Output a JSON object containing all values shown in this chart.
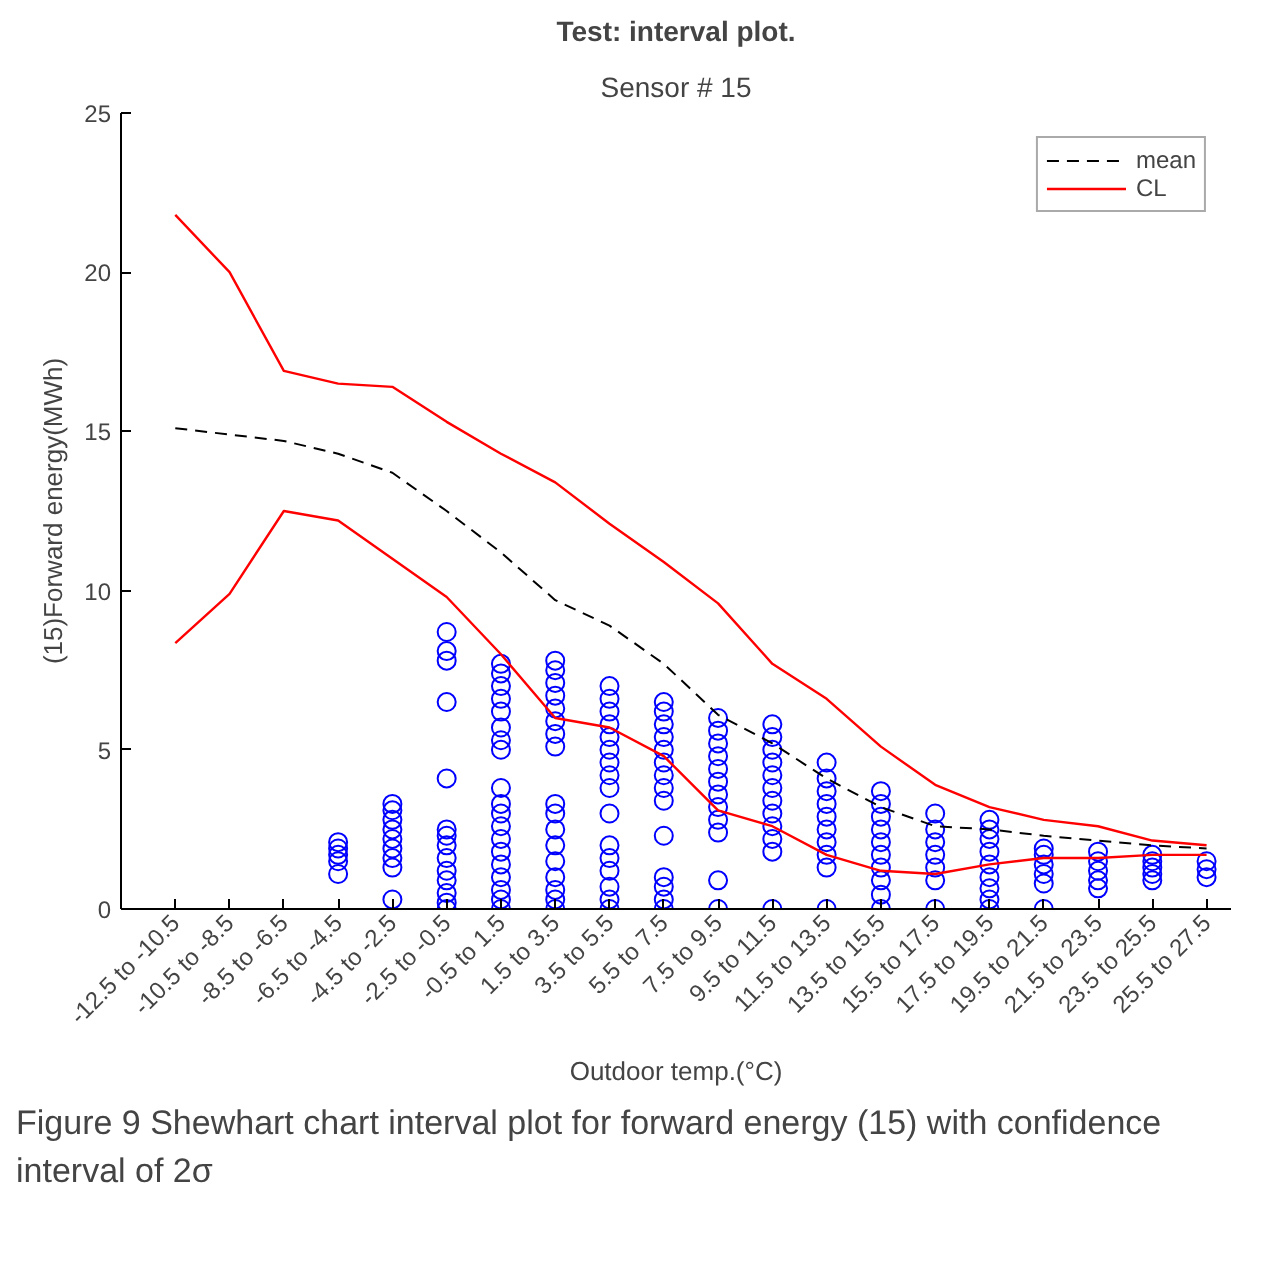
{
  "chart_data": {
    "type": "line",
    "title": "Test: interval plot.",
    "subtitle": "Sensor # 15",
    "xlabel": "Outdoor temp.(°C)",
    "ylabel": "(15)Forward energy(MWh)",
    "categories": [
      "-12.5 to -10.5",
      "-10.5 to -8.5",
      "-8.5 to -6.5",
      "-6.5 to -4.5",
      "-4.5 to -2.5",
      "-2.5 to -0.5",
      "-0.5 to 1.5",
      "1.5 to 3.5",
      "3.5 to 5.5",
      "5.5 to 7.5",
      "7.5 to 9.5",
      "9.5 to 11.5",
      "11.5 to 13.5",
      "13.5 to 15.5",
      "15.5 to 17.5",
      "17.5 to 19.5",
      "19.5 to 21.5",
      "21.5 to 23.5",
      "23.5 to 25.5",
      "25.5 to 27.5"
    ],
    "ylim": [
      0,
      25
    ],
    "yticks": [
      0,
      5,
      10,
      15,
      20,
      25
    ],
    "grid": false,
    "legend": "top right",
    "series": [
      {
        "type": "scatter",
        "color": "#0000ff",
        "marker": "circle",
        "x": [
          "-6.5 to -4.5",
          "-6.5 to -4.5",
          "-6.5 to -4.5",
          "-6.5 to -4.5",
          "-6.5 to -4.5",
          "-4.5 to -2.5",
          "-4.5 to -2.5",
          "-4.5 to -2.5",
          "-4.5 to -2.5",
          "-4.5 to -2.5",
          "-4.5 to -2.5",
          "-4.5 to -2.5",
          "-4.5 to -2.5",
          "-4.5 to -2.5",
          "-2.5 to -0.5",
          "-2.5 to -0.5",
          "-2.5 to -0.5",
          "-2.5 to -0.5",
          "-2.5 to -0.5",
          "-2.5 to -0.5",
          "-2.5 to -0.5",
          "-2.5 to -0.5",
          "-2.5 to -0.5",
          "-2.5 to -0.5",
          "-2.5 to -0.5",
          "-2.5 to -0.5",
          "-2.5 to -0.5",
          "-2.5 to -0.5",
          "-0.5 to 1.5",
          "-0.5 to 1.5",
          "-0.5 to 1.5",
          "-0.5 to 1.5",
          "-0.5 to 1.5",
          "-0.5 to 1.5",
          "-0.5 to 1.5",
          "-0.5 to 1.5",
          "-0.5 to 1.5",
          "-0.5 to 1.5",
          "-0.5 to 1.5",
          "-0.5 to 1.5",
          "-0.5 to 1.5",
          "-0.5 to 1.5",
          "-0.5 to 1.5",
          "-0.5 to 1.5",
          "-0.5 to 1.5",
          "-0.5 to 1.5",
          "-0.5 to 1.5",
          "1.5 to 3.5",
          "1.5 to 3.5",
          "1.5 to 3.5",
          "1.5 to 3.5",
          "1.5 to 3.5",
          "1.5 to 3.5",
          "1.5 to 3.5",
          "1.5 to 3.5",
          "1.5 to 3.5",
          "1.5 to 3.5",
          "1.5 to 3.5",
          "1.5 to 3.5",
          "1.5 to 3.5",
          "1.5 to 3.5",
          "1.5 to 3.5",
          "1.5 to 3.5",
          "1.5 to 3.5",
          "3.5 to 5.5",
          "3.5 to 5.5",
          "3.5 to 5.5",
          "3.5 to 5.5",
          "3.5 to 5.5",
          "3.5 to 5.5",
          "3.5 to 5.5",
          "3.5 to 5.5",
          "3.5 to 5.5",
          "3.5 to 5.5",
          "3.5 to 5.5",
          "3.5 to 5.5",
          "3.5 to 5.5",
          "3.5 to 5.5",
          "3.5 to 5.5",
          "3.5 to 5.5",
          "5.5 to 7.5",
          "5.5 to 7.5",
          "5.5 to 7.5",
          "5.5 to 7.5",
          "5.5 to 7.5",
          "5.5 to 7.5",
          "5.5 to 7.5",
          "5.5 to 7.5",
          "5.5 to 7.5",
          "5.5 to 7.5",
          "5.5 to 7.5",
          "5.5 to 7.5",
          "5.5 to 7.5",
          "5.5 to 7.5",
          "7.5 to 9.5",
          "7.5 to 9.5",
          "7.5 to 9.5",
          "7.5 to 9.5",
          "7.5 to 9.5",
          "7.5 to 9.5",
          "7.5 to 9.5",
          "7.5 to 9.5",
          "7.5 to 9.5",
          "7.5 to 9.5",
          "7.5 to 9.5",
          "7.5 to 9.5",
          "9.5 to 11.5",
          "9.5 to 11.5",
          "9.5 to 11.5",
          "9.5 to 11.5",
          "9.5 to 11.5",
          "9.5 to 11.5",
          "9.5 to 11.5",
          "9.5 to 11.5",
          "9.5 to 11.5",
          "9.5 to 11.5",
          "9.5 to 11.5",
          "9.5 to 11.5",
          "11.5 to 13.5",
          "11.5 to 13.5",
          "11.5 to 13.5",
          "11.5 to 13.5",
          "11.5 to 13.5",
          "11.5 to 13.5",
          "11.5 to 13.5",
          "11.5 to 13.5",
          "11.5 to 13.5",
          "11.5 to 13.5",
          "13.5 to 15.5",
          "13.5 to 15.5",
          "13.5 to 15.5",
          "13.5 to 15.5",
          "13.5 to 15.5",
          "13.5 to 15.5",
          "13.5 to 15.5",
          "13.5 to 15.5",
          "13.5 to 15.5",
          "13.5 to 15.5",
          "15.5 to 17.5",
          "15.5 to 17.5",
          "15.5 to 17.5",
          "15.5 to 17.5",
          "15.5 to 17.5",
          "15.5 to 17.5",
          "15.5 to 17.5",
          "17.5 to 19.5",
          "17.5 to 19.5",
          "17.5 to 19.5",
          "17.5 to 19.5",
          "17.5 to 19.5",
          "17.5 to 19.5",
          "17.5 to 19.5",
          "17.5 to 19.5",
          "17.5 to 19.5",
          "19.5 to 21.5",
          "19.5 to 21.5",
          "19.5 to 21.5",
          "19.5 to 21.5",
          "19.5 to 21.5",
          "19.5 to 21.5",
          "21.5 to 23.5",
          "21.5 to 23.5",
          "21.5 to 23.5",
          "21.5 to 23.5",
          "21.5 to 23.5",
          "23.5 to 25.5",
          "23.5 to 25.5",
          "23.5 to 25.5",
          "23.5 to 25.5",
          "23.5 to 25.5",
          "25.5 to 27.5",
          "25.5 to 27.5",
          "25.5 to 27.5"
        ],
        "values": [
          1.1,
          1.5,
          1.7,
          1.9,
          2.1,
          0.3,
          1.3,
          1.6,
          1.9,
          2.2,
          2.5,
          2.8,
          3.1,
          3.3,
          0,
          0.2,
          0.5,
          0.9,
          1.2,
          1.6,
          2.0,
          2.3,
          2.5,
          4.1,
          6.5,
          7.8,
          8.1,
          8.7,
          0,
          0.3,
          0.6,
          1.0,
          1.4,
          1.8,
          2.2,
          2.6,
          3.0,
          3.3,
          3.8,
          5.0,
          5.3,
          5.7,
          6.2,
          6.6,
          7.0,
          7.4,
          7.7,
          0,
          0.3,
          0.6,
          1.0,
          1.5,
          2.0,
          2.5,
          3.0,
          3.3,
          5.1,
          5.5,
          5.9,
          6.3,
          6.7,
          7.1,
          7.5,
          7.8,
          0,
          0.3,
          0.7,
          1.2,
          1.6,
          2.0,
          3.0,
          3.8,
          4.2,
          4.6,
          5.0,
          5.4,
          5.8,
          6.2,
          6.6,
          7.0,
          0,
          0.3,
          0.7,
          1.0,
          2.3,
          3.4,
          3.8,
          4.2,
          4.6,
          5.0,
          5.4,
          5.8,
          6.2,
          6.5,
          0,
          0.9,
          2.4,
          2.8,
          3.2,
          3.6,
          4.0,
          4.4,
          4.8,
          5.2,
          5.6,
          6.0,
          0,
          1.8,
          2.2,
          2.6,
          3.0,
          3.4,
          3.8,
          4.2,
          4.6,
          5.0,
          5.4,
          5.8,
          0,
          1.3,
          1.7,
          2.1,
          2.5,
          2.9,
          3.3,
          3.7,
          4.1,
          4.6,
          0,
          0.45,
          0.9,
          1.3,
          1.7,
          2.1,
          2.5,
          2.9,
          3.3,
          3.7,
          0,
          0.9,
          1.3,
          1.7,
          2.1,
          2.5,
          3.0,
          0,
          0.3,
          0.65,
          1.0,
          1.4,
          1.8,
          2.2,
          2.5,
          2.8,
          0,
          0.8,
          1.1,
          1.4,
          1.7,
          1.9,
          0.65,
          0.9,
          1.2,
          1.5,
          1.8,
          0.9,
          1.1,
          1.3,
          1.5,
          1.7,
          1.0,
          1.25,
          1.5
        ]
      },
      {
        "name": "mean",
        "color": "#000000",
        "line_style": "dashed",
        "values": [
          15.1,
          14.9,
          14.7,
          14.3,
          13.7,
          12.5,
          11.2,
          9.7,
          8.9,
          7.7,
          6.1,
          5.2,
          4.1,
          3.2,
          2.6,
          2.5,
          2.3,
          2.15,
          2.0,
          1.9
        ]
      },
      {
        "name": "CL",
        "color": "#ff0000",
        "line_style": "solid",
        "values": [
          21.8,
          20.0,
          16.9,
          16.5,
          16.4,
          15.3,
          14.3,
          13.4,
          12.1,
          10.9,
          9.6,
          7.7,
          6.6,
          5.1,
          3.9,
          3.2,
          2.8,
          2.6,
          2.15,
          2.0
        ]
      },
      {
        "color": "#ff0000",
        "line_style": "solid",
        "values": [
          8.35,
          9.9,
          12.5,
          12.2,
          11.0,
          9.8,
          8.0,
          6.0,
          5.7,
          4.8,
          3.1,
          2.6,
          1.7,
          1.2,
          1.1,
          1.4,
          1.6,
          1.6,
          1.7,
          1.7
        ]
      }
    ],
    "annotations": [
      "Figure 9 Shewhart chart interval plot for forward energy (15) with confidence interval of 2σ"
    ]
  }
}
